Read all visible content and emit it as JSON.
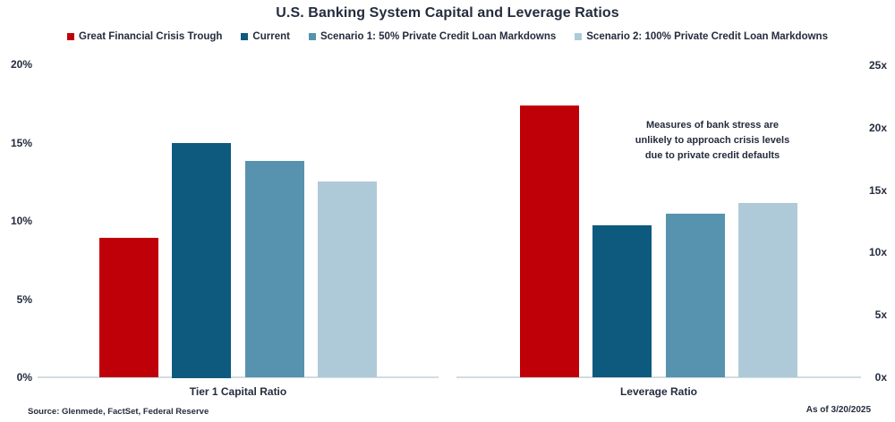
{
  "chart_data": {
    "type": "bar",
    "title": "U.S. Banking System Capital and Leverage Ratios",
    "categories": [
      "Tier 1 Capital Ratio",
      "Leverage Ratio"
    ],
    "series": [
      {
        "name": "Great Financial Crisis Trough",
        "color": "#c00009",
        "values": [
          8.9,
          21.8
        ]
      },
      {
        "name": "Current",
        "color": "#0e5a7e",
        "values": [
          15.0,
          12.2
        ]
      },
      {
        "name": "Scenario 1: 50% Private Credit Loan Markdowns",
        "color": "#5793ae",
        "values": [
          13.8,
          13.1
        ]
      },
      {
        "name": "Scenario 2: 100% Private Credit Loan Markdowns",
        "color": "#aecad8",
        "values": [
          12.5,
          14.0
        ]
      }
    ],
    "axes": {
      "left": {
        "applies_to": "Tier 1 Capital Ratio",
        "min": 0,
        "max": 20,
        "tick_step": 5,
        "ticks": [
          "0%",
          "5%",
          "10%",
          "15%",
          "20%"
        ]
      },
      "right": {
        "applies_to": "Leverage Ratio",
        "min": 0,
        "max": 25,
        "tick_step": 5,
        "ticks": [
          "0x",
          "5x",
          "10x",
          "15x",
          "20x",
          "25x"
        ]
      }
    },
    "annotation": {
      "lines": [
        "Measures of bank stress are",
        "unlikely to approach crisis levels",
        "due to private credit defaults"
      ]
    },
    "gridlines": false,
    "legend_position": "top"
  },
  "footer": {
    "source": "Source: Glenmede, FactSet, Federal Reserve",
    "as_of": "As of 3/20/2025"
  },
  "colors": {
    "text": "#242c3d",
    "axis_line": "#d2dce1",
    "background": "#ffffff"
  }
}
